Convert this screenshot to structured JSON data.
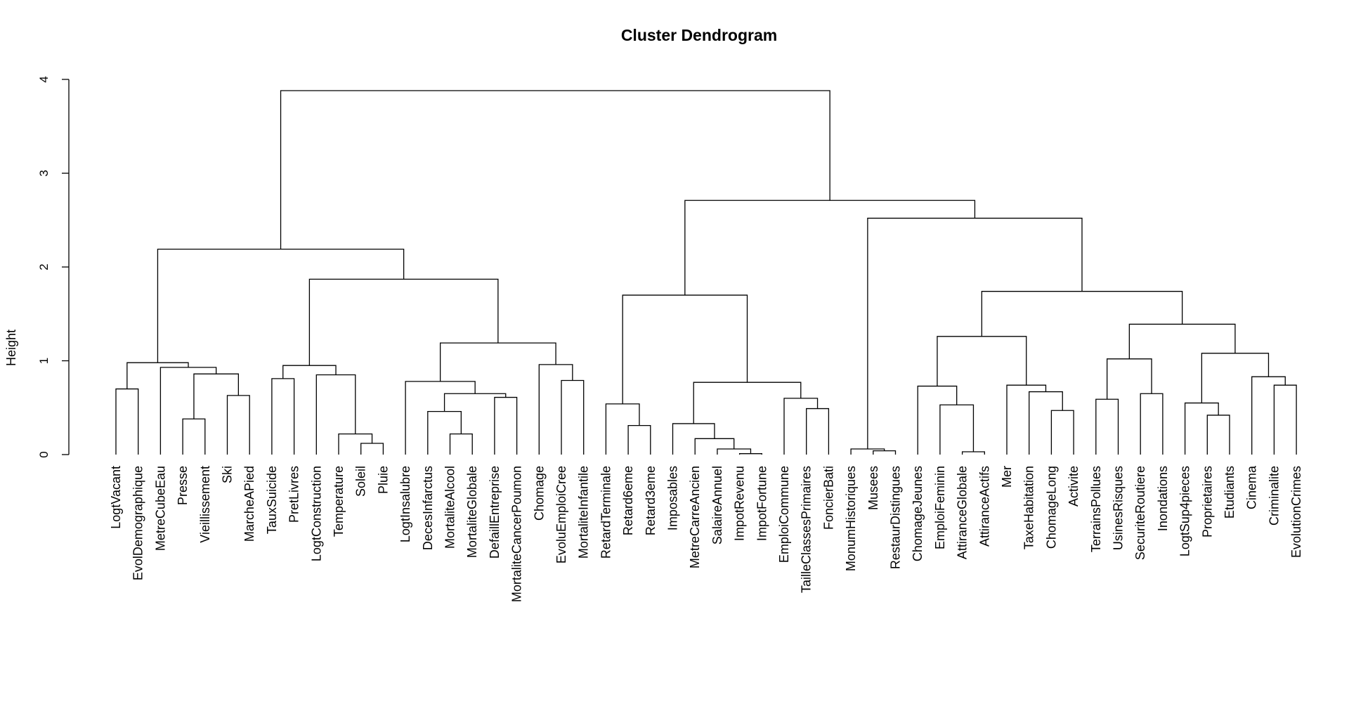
{
  "chart_data": {
    "type": "dendrogram",
    "title": "Cluster Dendrogram",
    "ylabel": "Height",
    "xlabel": "",
    "ylim": [
      0,
      4
    ],
    "yticks": [
      "0",
      "1",
      "2",
      "3",
      "4"
    ],
    "leaves": [
      "LogtVacant",
      "EvolDemographique",
      "MetreCubeEau",
      "Presse",
      "Vieillissement",
      "Ski",
      "MarcheAPied",
      "TauxSuicide",
      "PretLivres",
      "LogtConstruction",
      "Temperature",
      "Soleil",
      "Pluie",
      "LogtInsalubre",
      "DecesInfarctus",
      "MortaliteAlcool",
      "MortaliteGlobale",
      "DefaillEntreprise",
      "MortaliteCancerPoumon",
      "Chomage",
      "EvoluEmploiCree",
      "MortaliteInfantile",
      "RetardTerminale",
      "Retard6eme",
      "Retard3eme",
      "Imposables",
      "MetreCarreAncien",
      "SalaireAnnuel",
      "ImpotRevenu",
      "ImpotFortune",
      "EmploiCommune",
      "TailleClassesPrimaires",
      "FoncierBati",
      "MonumHistoriques",
      "Musees",
      "RestaurDistingues",
      "ChomageJeunes",
      "EmploiFeminin",
      "AttiranceGlobale",
      "AttiranceActifs",
      "Mer",
      "TaxeHabitation",
      "ChomageLong",
      "Activite",
      "TerrainsPollues",
      "UsinesRisques",
      "SecuriteRoutiere",
      "Inondations",
      "LogtSup4pieces",
      "Proprietaires",
      "Etudiants",
      "Cinema",
      "Criminalite",
      "EvolutionCrimes"
    ],
    "merges": [
      {
        "id": "m01",
        "a": "L0",
        "b": "L1",
        "height": 0.7
      },
      {
        "id": "m02",
        "a": "L3",
        "b": "L4",
        "height": 0.38
      },
      {
        "id": "m03",
        "a": "L5",
        "b": "L6",
        "height": 0.63
      },
      {
        "id": "m04",
        "a": "m02",
        "b": "m03",
        "height": 0.86
      },
      {
        "id": "m05",
        "a": "L2",
        "b": "m04",
        "height": 0.93
      },
      {
        "id": "m06",
        "a": "m01",
        "b": "m05",
        "height": 0.98
      },
      {
        "id": "m07",
        "a": "L7",
        "b": "L8",
        "height": 0.81
      },
      {
        "id": "m08",
        "a": "L11",
        "b": "L12",
        "height": 0.12
      },
      {
        "id": "m09",
        "a": "L10",
        "b": "m08",
        "height": 0.22
      },
      {
        "id": "m10",
        "a": "L9",
        "b": "m09",
        "height": 0.85
      },
      {
        "id": "m11",
        "a": "m07",
        "b": "m10",
        "height": 0.95
      },
      {
        "id": "m12",
        "a": "L15",
        "b": "L16",
        "height": 0.22
      },
      {
        "id": "m13",
        "a": "L14",
        "b": "m12",
        "height": 0.46
      },
      {
        "id": "m14",
        "a": "L17",
        "b": "L18",
        "height": 0.61
      },
      {
        "id": "m15",
        "a": "m13",
        "b": "m14",
        "height": 0.65
      },
      {
        "id": "m16",
        "a": "L13",
        "b": "m15",
        "height": 0.78
      },
      {
        "id": "m17",
        "a": "L20",
        "b": "L21",
        "height": 0.79
      },
      {
        "id": "m18",
        "a": "L19",
        "b": "m17",
        "height": 0.96
      },
      {
        "id": "m19",
        "a": "m16",
        "b": "m18",
        "height": 1.19
      },
      {
        "id": "m20",
        "a": "m11",
        "b": "m19",
        "height": 1.87
      },
      {
        "id": "m21",
        "a": "m06",
        "b": "m20",
        "height": 2.19
      },
      {
        "id": "m22",
        "a": "L23",
        "b": "L24",
        "height": 0.31
      },
      {
        "id": "m23",
        "a": "L22",
        "b": "m22",
        "height": 0.54
      },
      {
        "id": "m24",
        "a": "L28",
        "b": "L29",
        "height": 0.01
      },
      {
        "id": "m25",
        "a": "L27",
        "b": "m24",
        "height": 0.06
      },
      {
        "id": "m26",
        "a": "L26",
        "b": "m25",
        "height": 0.17
      },
      {
        "id": "m27",
        "a": "L25",
        "b": "m26",
        "height": 0.33
      },
      {
        "id": "m28",
        "a": "L31",
        "b": "L32",
        "height": 0.49
      },
      {
        "id": "m29",
        "a": "L30",
        "b": "m28",
        "height": 0.6
      },
      {
        "id": "m30",
        "a": "m27",
        "b": "m29",
        "height": 0.77
      },
      {
        "id": "m31",
        "a": "m23",
        "b": "m30",
        "height": 1.7
      },
      {
        "id": "m32",
        "a": "L34",
        "b": "L35",
        "height": 0.04
      },
      {
        "id": "m33",
        "a": "L33",
        "b": "m32",
        "height": 0.06
      },
      {
        "id": "m34",
        "a": "L38",
        "b": "L39",
        "height": 0.03
      },
      {
        "id": "m35",
        "a": "L37",
        "b": "m34",
        "height": 0.53
      },
      {
        "id": "m36",
        "a": "L36",
        "b": "m35",
        "height": 0.73
      },
      {
        "id": "m37",
        "a": "L42",
        "b": "L43",
        "height": 0.47
      },
      {
        "id": "m38",
        "a": "L41",
        "b": "m37",
        "height": 0.67
      },
      {
        "id": "m39",
        "a": "L40",
        "b": "m38",
        "height": 0.74
      },
      {
        "id": "m40",
        "a": "m36",
        "b": "m39",
        "height": 1.26
      },
      {
        "id": "m41",
        "a": "L44",
        "b": "L45",
        "height": 0.59
      },
      {
        "id": "m42",
        "a": "L46",
        "b": "L47",
        "height": 0.65
      },
      {
        "id": "m43",
        "a": "m41",
        "b": "m42",
        "height": 1.02
      },
      {
        "id": "m44",
        "a": "L49",
        "b": "L50",
        "height": 0.42
      },
      {
        "id": "m45",
        "a": "L48",
        "b": "m44",
        "height": 0.55
      },
      {
        "id": "m46",
        "a": "L52",
        "b": "L53",
        "height": 0.74
      },
      {
        "id": "m47",
        "a": "L51",
        "b": "m46",
        "height": 0.83
      },
      {
        "id": "m48",
        "a": "m45",
        "b": "m47",
        "height": 1.08
      },
      {
        "id": "m49",
        "a": "m43",
        "b": "m48",
        "height": 1.39
      },
      {
        "id": "m50",
        "a": "m40",
        "b": "m49",
        "height": 1.74
      },
      {
        "id": "m51",
        "a": "m33",
        "b": "m50",
        "height": 2.52
      },
      {
        "id": "m52",
        "a": "m31",
        "b": "m51",
        "height": 2.71
      },
      {
        "id": "m53",
        "a": "m21",
        "b": "m52",
        "height": 3.88
      }
    ]
  }
}
